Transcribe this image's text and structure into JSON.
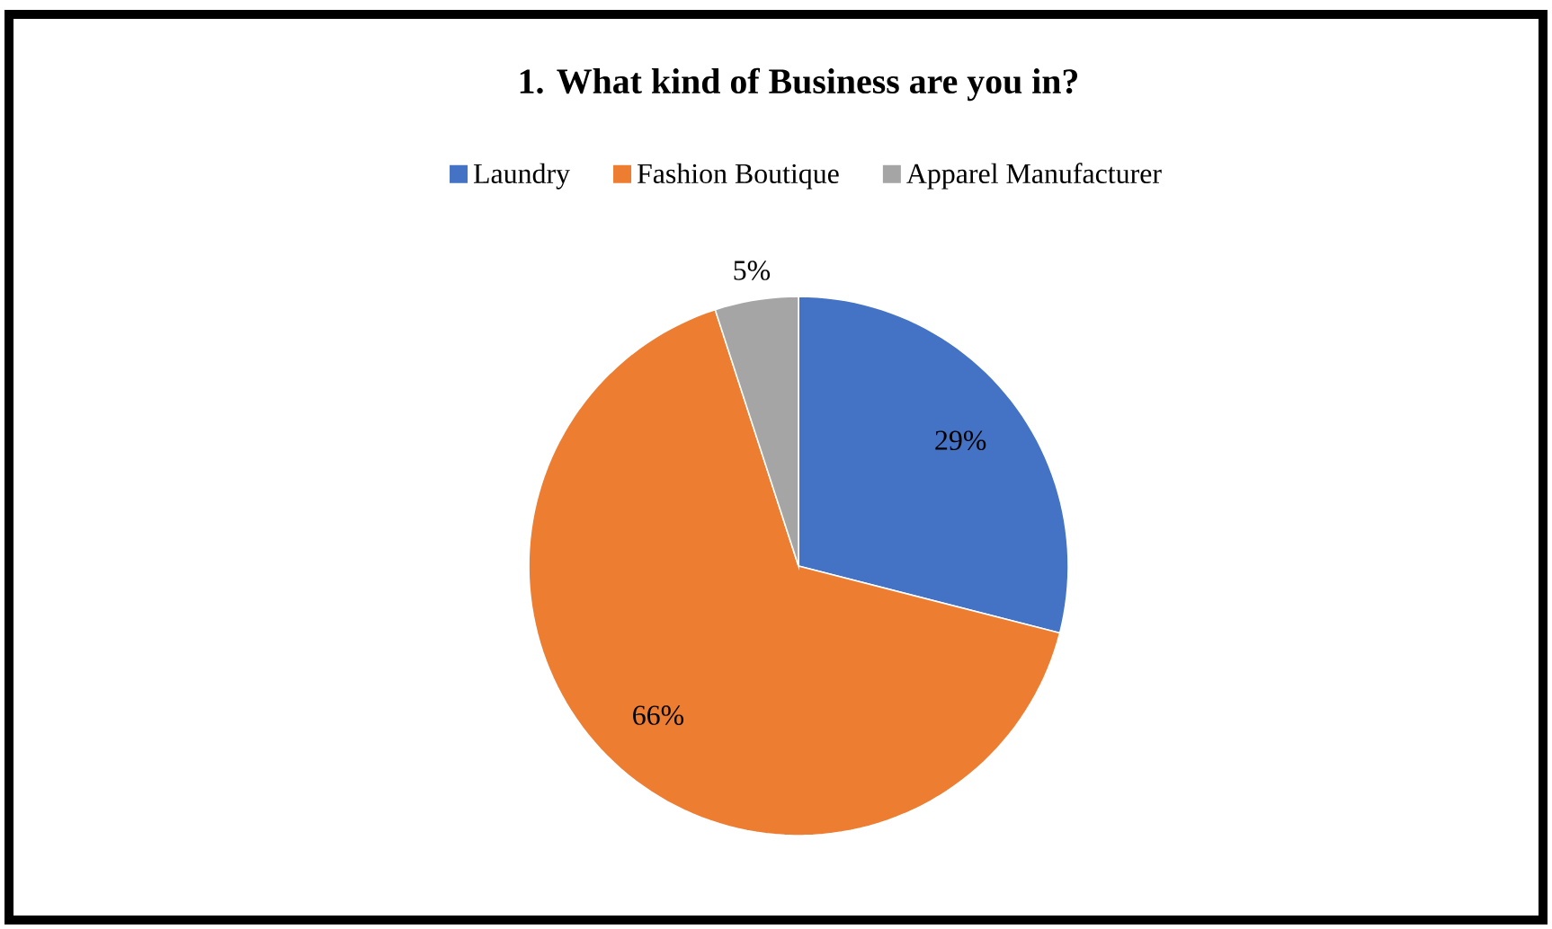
{
  "chart_data": {
    "type": "pie",
    "title": "1. What kind of Business are you in?",
    "categories": [
      "Laundry",
      "Fashion Boutique",
      "Apparel Manufacturer"
    ],
    "values": [
      29,
      66,
      5
    ],
    "value_labels": [
      "29%",
      "66%",
      "5%"
    ],
    "colors": [
      "#4472c4",
      "#ed7d31",
      "#a5a5a5"
    ],
    "legend": "top"
  }
}
